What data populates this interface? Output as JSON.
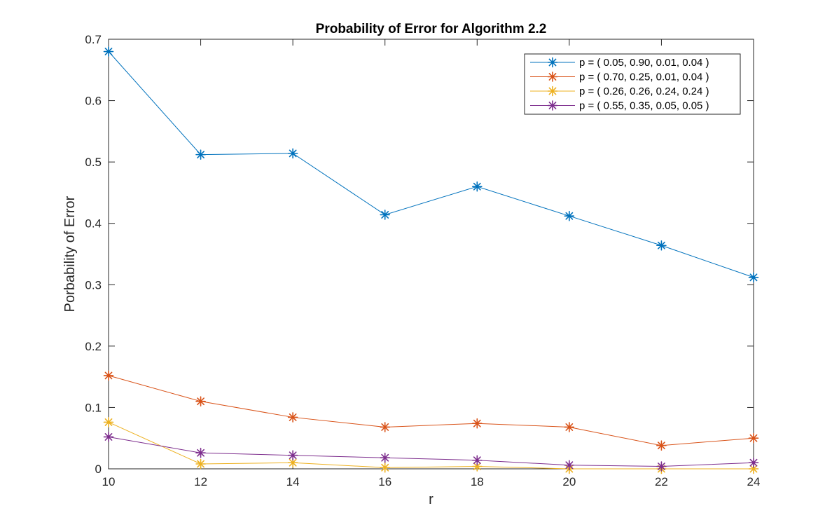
{
  "chart_data": {
    "type": "line",
    "title": "Probability of Error for Algorithm 2.2",
    "xlabel": "r",
    "ylabel": "Porbability of Error",
    "xlim": [
      10,
      24
    ],
    "ylim": [
      0,
      0.7
    ],
    "xticks": [
      10,
      12,
      14,
      16,
      18,
      20,
      22,
      24
    ],
    "xtick_labels": [
      "10",
      "12",
      "14",
      "16",
      "18",
      "20",
      "22",
      "24"
    ],
    "yticks": [
      0,
      0.1,
      0.2,
      0.3,
      0.4,
      0.5,
      0.6,
      0.7
    ],
    "ytick_labels": [
      "0",
      "0.1",
      "0.2",
      "0.3",
      "0.4",
      "0.5",
      "0.6",
      "0.7"
    ],
    "grid": false,
    "legend_position": "top-right",
    "marker": "asterisk",
    "x": [
      10,
      12,
      14,
      16,
      18,
      20,
      22,
      24
    ],
    "series": [
      {
        "name": "p = ( 0.05, 0.90, 0.01, 0.04 )",
        "color": "#0072BD",
        "values": [
          0.68,
          0.512,
          0.514,
          0.414,
          0.46,
          0.412,
          0.364,
          0.312
        ]
      },
      {
        "name": "p = ( 0.70, 0.25, 0.01, 0.04 )",
        "color": "#D95319",
        "values": [
          0.152,
          0.11,
          0.084,
          0.068,
          0.074,
          0.068,
          0.038,
          0.05
        ]
      },
      {
        "name": "p = ( 0.26, 0.26, 0.24, 0.24 )",
        "color": "#EDB120",
        "values": [
          0.076,
          0.008,
          0.01,
          0.002,
          0.004,
          0.0,
          0.0,
          0.0
        ]
      },
      {
        "name": "p = ( 0.55, 0.35, 0.05, 0.05 )",
        "color": "#7E2F8E",
        "values": [
          0.052,
          0.026,
          0.022,
          0.018,
          0.014,
          0.006,
          0.004,
          0.01
        ]
      }
    ]
  }
}
